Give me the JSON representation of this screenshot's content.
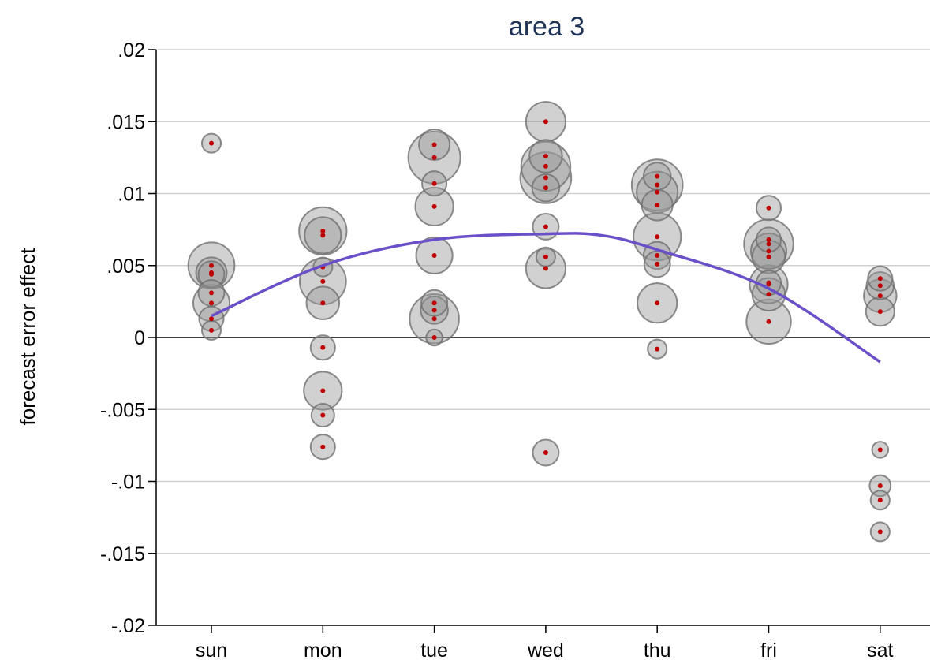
{
  "chart_data": {
    "type": "scatter",
    "title": "area 3",
    "xlabel": "",
    "ylabel": "forecast error effect",
    "categories": [
      "sun",
      "mon",
      "tue",
      "wed",
      "thu",
      "fri",
      "sat"
    ],
    "y_ticks": [
      ".02",
      ".015",
      ".01",
      ".005",
      "0",
      "-.005",
      "-.01",
      "-.015",
      "-.02"
    ],
    "y_tick_values": [
      0.02,
      0.015,
      0.01,
      0.005,
      0,
      -0.005,
      -0.01,
      -0.015,
      -0.02
    ],
    "ylim": [
      -0.02,
      0.02
    ],
    "grid": true,
    "zero_line": true,
    "marker_color": "#c00000",
    "bubble_fill": "#9a9a9a",
    "bubble_stroke": "#6f6f6f",
    "fit_color": "#6a4fc9",
    "title_color": "#1f3356",
    "points": [
      {
        "x": "sun",
        "y": 0.0135,
        "w": 0.2
      },
      {
        "x": "sun",
        "y": 0.005,
        "w": 3.0
      },
      {
        "x": "sun",
        "y": 0.0045,
        "w": 1.0
      },
      {
        "x": "sun",
        "y": 0.0044,
        "w": 0.6
      },
      {
        "x": "sun",
        "y": 0.0031,
        "w": 0.6
      },
      {
        "x": "sun",
        "y": 0.0024,
        "w": 1.6
      },
      {
        "x": "sun",
        "y": 0.0013,
        "w": 0.5
      },
      {
        "x": "sun",
        "y": 0.0005,
        "w": 0.2
      },
      {
        "x": "mon",
        "y": 0.0074,
        "w": 3.2
      },
      {
        "x": "mon",
        "y": 0.0071,
        "w": 1.6
      },
      {
        "x": "mon",
        "y": 0.0049,
        "w": 0.2
      },
      {
        "x": "mon",
        "y": 0.0039,
        "w": 3.0
      },
      {
        "x": "mon",
        "y": 0.0024,
        "w": 1.2
      },
      {
        "x": "mon",
        "y": -0.0007,
        "w": 0.5
      },
      {
        "x": "mon",
        "y": -0.0037,
        "w": 1.8
      },
      {
        "x": "mon",
        "y": -0.0054,
        "w": 0.4
      },
      {
        "x": "mon",
        "y": -0.0076,
        "w": 0.5
      },
      {
        "x": "tue",
        "y": 0.0134,
        "w": 1.0
      },
      {
        "x": "tue",
        "y": 0.0125,
        "w": 4.0
      },
      {
        "x": "tue",
        "y": 0.0107,
        "w": 0.5
      },
      {
        "x": "tue",
        "y": 0.0091,
        "w": 1.8
      },
      {
        "x": "tue",
        "y": 0.0057,
        "w": 1.6
      },
      {
        "x": "tue",
        "y": 0.0024,
        "w": 0.6
      },
      {
        "x": "tue",
        "y": 0.0019,
        "w": 0.7
      },
      {
        "x": "tue",
        "y": 0.0013,
        "w": 3.5
      },
      {
        "x": "tue",
        "y": 0.0,
        "w": 0.1
      },
      {
        "x": "wed",
        "y": 0.015,
        "w": 2.0
      },
      {
        "x": "wed",
        "y": 0.0126,
        "w": 1.2
      },
      {
        "x": "wed",
        "y": 0.0119,
        "w": 3.5
      },
      {
        "x": "wed",
        "y": 0.0111,
        "w": 3.8
      },
      {
        "x": "wed",
        "y": 0.0104,
        "w": 0.7
      },
      {
        "x": "wed",
        "y": 0.0077,
        "w": 0.6
      },
      {
        "x": "wed",
        "y": 0.0056,
        "w": 0.2
      },
      {
        "x": "wed",
        "y": 0.0048,
        "w": 2.0
      },
      {
        "x": "wed",
        "y": -0.008,
        "w": 0.6
      },
      {
        "x": "thu",
        "y": 0.0112,
        "w": 0.7
      },
      {
        "x": "thu",
        "y": 0.0106,
        "w": 3.8
      },
      {
        "x": "thu",
        "y": 0.0101,
        "w": 2.2
      },
      {
        "x": "thu",
        "y": 0.0092,
        "w": 1.0
      },
      {
        "x": "thu",
        "y": 0.007,
        "w": 3.2
      },
      {
        "x": "thu",
        "y": 0.0057,
        "w": 0.7
      },
      {
        "x": "thu",
        "y": 0.0051,
        "w": 0.6
      },
      {
        "x": "thu",
        "y": 0.0024,
        "w": 2.0
      },
      {
        "x": "thu",
        "y": -0.0008,
        "w": 0.2
      },
      {
        "x": "fri",
        "y": 0.009,
        "w": 0.5
      },
      {
        "x": "fri",
        "y": 0.0068,
        "w": 0.5
      },
      {
        "x": "fri",
        "y": 0.0065,
        "w": 3.5
      },
      {
        "x": "fri",
        "y": 0.006,
        "w": 1.5
      },
      {
        "x": "fri",
        "y": 0.0056,
        "w": 1.2
      },
      {
        "x": "fri",
        "y": 0.0038,
        "w": 0.5
      },
      {
        "x": "fri",
        "y": 0.0037,
        "w": 1.8
      },
      {
        "x": "fri",
        "y": 0.003,
        "w": 1.2
      },
      {
        "x": "fri",
        "y": 0.0011,
        "w": 2.7
      },
      {
        "x": "sat",
        "y": 0.0041,
        "w": 0.5
      },
      {
        "x": "sat",
        "y": 0.0036,
        "w": 0.7
      },
      {
        "x": "sat",
        "y": 0.0029,
        "w": 1.2
      },
      {
        "x": "sat",
        "y": 0.0018,
        "w": 0.8
      },
      {
        "x": "sat",
        "y": -0.0078,
        "w": 0.1
      },
      {
        "x": "sat",
        "y": -0.0103,
        "w": 0.3
      },
      {
        "x": "sat",
        "y": -0.0113,
        "w": 0.2
      },
      {
        "x": "sat",
        "y": -0.0135,
        "w": 0.2
      }
    ],
    "fit_line": {
      "x": [
        0,
        1,
        2,
        3,
        3.5,
        4,
        5,
        6
      ],
      "y": [
        0.0015,
        0.005,
        0.0068,
        0.0072,
        0.0071,
        0.0061,
        0.0034,
        -0.0017
      ]
    }
  }
}
